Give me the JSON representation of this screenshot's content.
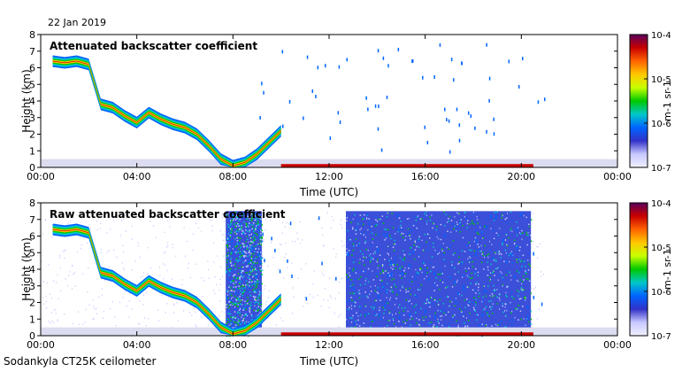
{
  "date": "22 Jan 2019",
  "footer": "Sodankyla CT25K ceilometer",
  "colorbar_ticks": [
    "10-4",
    "10-5",
    "10-6",
    "10-7"
  ],
  "colorbar_unit": "m-1 sr-1",
  "colorscale": [
    "#5a005a",
    "#c80000",
    "#ff6400",
    "#ffc800",
    "#c8ff00",
    "#00c800",
    "#00c8c8",
    "#0064ff",
    "#3232c8",
    "#c8c8ff",
    "#f0f0ff"
  ],
  "chart_data": [
    {
      "type": "heatmap",
      "title": "Attenuated backscatter coefficient",
      "xlabel": "Time (UTC)",
      "ylabel": "Height (km)",
      "xticks": [
        "00:00",
        "04:00",
        "08:00",
        "12:00",
        "16:00",
        "20:00",
        "00:00"
      ],
      "yticks": [
        "0",
        "1",
        "2",
        "3",
        "4",
        "5",
        "6",
        "7",
        "8"
      ],
      "xlim": [
        0,
        24
      ],
      "ylim": [
        0,
        8
      ],
      "colorbar": {
        "min": 1e-07,
        "max": 0.0001,
        "scale": "log",
        "unit": "m-1 sr-1"
      },
      "cloud_layer_height_km": {
        "hours": [
          0.5,
          1.0,
          1.5,
          2.0,
          2.5,
          3.0,
          3.5,
          4.0,
          4.5,
          5.0,
          5.5,
          6.0,
          6.5,
          7.0,
          7.5,
          8.0,
          8.5,
          9.0,
          9.5,
          10.0
        ],
        "values": [
          6.4,
          6.3,
          6.4,
          6.2,
          3.8,
          3.6,
          3.1,
          2.7,
          3.3,
          2.9,
          2.6,
          2.4,
          2.0,
          1.3,
          0.5,
          0.1,
          0.3,
          0.8,
          1.5,
          2.2
        ]
      },
      "low_layer_height_km": {
        "start_hour": 10.0,
        "end_hour": 20.5,
        "value": 0.1
      }
    },
    {
      "type": "heatmap",
      "title": "Raw attenuated backscatter coefficient",
      "xlabel": "Time (UTC)",
      "ylabel": "Height (km)",
      "xticks": [
        "00:00",
        "04:00",
        "08:00",
        "12:00",
        "16:00",
        "20:00",
        "00:00"
      ],
      "yticks": [
        "0",
        "1",
        "2",
        "3",
        "4",
        "5",
        "6",
        "7",
        "8"
      ],
      "xlim": [
        0,
        24
      ],
      "ylim": [
        0,
        8
      ],
      "colorbar": {
        "min": 1e-07,
        "max": 0.0001,
        "scale": "log",
        "unit": "m-1 sr-1"
      },
      "noise_blocks_hours": [
        [
          7.7,
          9.2
        ],
        [
          12.7,
          20.4
        ]
      ],
      "cloud_layer_height_km": {
        "hours": [
          0.5,
          1.0,
          1.5,
          2.0,
          2.5,
          3.0,
          3.5,
          4.0,
          4.5,
          5.0,
          5.5,
          6.0,
          6.5,
          7.0,
          7.5,
          8.0,
          8.5,
          9.0,
          9.5,
          10.0
        ],
        "values": [
          6.4,
          6.3,
          6.4,
          6.2,
          3.8,
          3.6,
          3.1,
          2.7,
          3.3,
          2.9,
          2.6,
          2.4,
          2.0,
          1.3,
          0.5,
          0.1,
          0.3,
          0.8,
          1.5,
          2.2
        ]
      },
      "low_layer_height_km": {
        "start_hour": 10.0,
        "end_hour": 20.5,
        "value": 0.1
      }
    }
  ]
}
